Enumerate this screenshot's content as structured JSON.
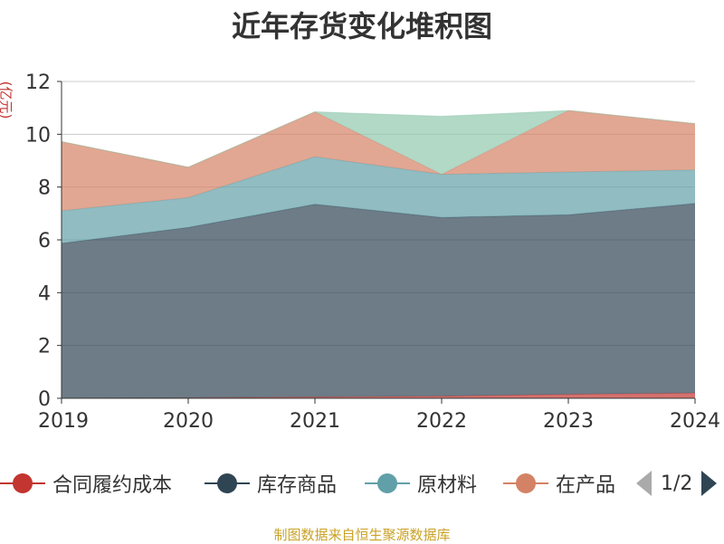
{
  "chart_data": {
    "type": "area",
    "stacked": true,
    "title": "近年存货变化堆积图",
    "unit_label": "(亿元)",
    "x": [
      "2019",
      "2020",
      "2021",
      "2022",
      "2023",
      "2024"
    ],
    "ylim": [
      0,
      12
    ],
    "yticks": [
      "0",
      "2",
      "4",
      "6",
      "8",
      "10",
      "12"
    ],
    "grid": true,
    "legend_position": "bottom",
    "series": [
      {
        "name": "合同履约成本",
        "color": "#c23531",
        "values": [
          0.0,
          0.02,
          0.05,
          0.08,
          0.15,
          0.2
        ]
      },
      {
        "name": "库存商品",
        "color": "#2f4554",
        "values": [
          5.87,
          6.45,
          7.3,
          6.77,
          6.8,
          7.18
        ]
      },
      {
        "name": "原材料",
        "color": "#61a0a8",
        "values": [
          1.23,
          1.13,
          1.8,
          1.63,
          1.62,
          1.27
        ]
      },
      {
        "name": "在产品",
        "color": "#d48265",
        "values": [
          2.62,
          1.15,
          1.7,
          0.0,
          2.33,
          1.75
        ]
      },
      {
        "name": "",
        "color": "#91c7ae",
        "values": [
          0.0,
          0.0,
          0.0,
          2.2,
          0.0,
          0.0
        ]
      }
    ]
  },
  "legend": {
    "items": [
      "合同履约成本",
      "库存商品",
      "原材料",
      "在产品"
    ],
    "page_text": "1/2"
  },
  "source_text": "制图数据来自恒生聚源数据库"
}
